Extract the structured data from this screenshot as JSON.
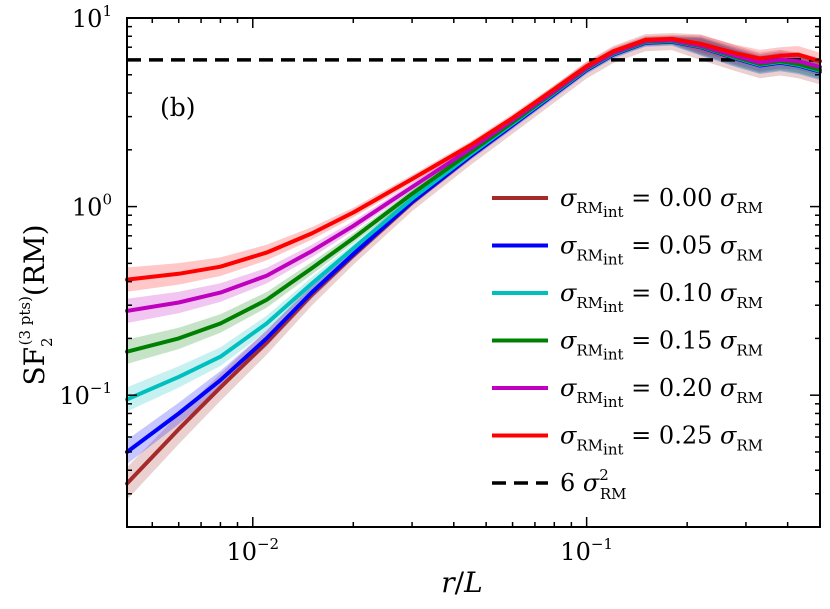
{
  "chart_data": {
    "type": "line",
    "panel_label": "(b)",
    "xscale": "log",
    "yscale": "log",
    "xlim": [
      0.0042,
      0.5
    ],
    "ylim": [
      0.02,
      10
    ],
    "xlabel": {
      "italic_a": "r",
      "slash": "/",
      "italic_b": "L"
    },
    "ylabel": {
      "prefix": "SF",
      "sub": "2",
      "sup": "(3 pts)",
      "suffix": "(RM)"
    },
    "x_ticks": [
      {
        "base": "10",
        "exp": "−2",
        "value": 0.01
      },
      {
        "base": "10",
        "exp": "−1",
        "value": 0.1
      }
    ],
    "y_ticks": [
      {
        "base": "10",
        "exp": "−1",
        "value": 0.1
      },
      {
        "base": "10",
        "exp": "0",
        "value": 1
      },
      {
        "base": "10",
        "exp": "1",
        "value": 10
      }
    ],
    "reference_line": {
      "value": 6,
      "color": "#000000",
      "style": "dashed",
      "legend": {
        "coef": "6 ",
        "sym": "σ",
        "sup": "2",
        "sub": "RM"
      }
    },
    "legend_position": "right",
    "x": [
      0.0042,
      0.006,
      0.008,
      0.011,
      0.015,
      0.02,
      0.03,
      0.045,
      0.06,
      0.08,
      0.1,
      0.12,
      0.15,
      0.18,
      0.22,
      0.28,
      0.33,
      0.38,
      0.43,
      0.5
    ],
    "series": [
      {
        "name": "σRMint = 0.00 σRM",
        "legend": {
          "sym": "σ",
          "sub1": "RM",
          "sub2": "int",
          "eq": " = ",
          "val": "0.00",
          "sym2": "σ",
          "sub3": "RM"
        },
        "color": "#a52a2a",
        "values": [
          0.034,
          0.066,
          0.11,
          0.19,
          0.34,
          0.55,
          1.05,
          1.85,
          2.7,
          3.95,
          5.3,
          6.4,
          7.4,
          7.5,
          7.0,
          6.1,
          5.6,
          5.8,
          5.6,
          5.2
        ]
      },
      {
        "name": "σRMint = 0.05 σRM",
        "legend": {
          "sym": "σ",
          "sub1": "RM",
          "sub2": "int",
          "eq": " = ",
          "val": "0.05",
          "sym2": "σ",
          "sub3": "RM"
        },
        "color": "#0000ff",
        "values": [
          0.05,
          0.08,
          0.12,
          0.2,
          0.35,
          0.56,
          1.06,
          1.86,
          2.7,
          3.95,
          5.3,
          6.4,
          7.4,
          7.5,
          7.0,
          6.1,
          5.6,
          5.8,
          5.6,
          5.2
        ]
      },
      {
        "name": "σRMint = 0.10 σRM",
        "legend": {
          "sym": "σ",
          "sub1": "RM",
          "sub2": "int",
          "eq": " = ",
          "val": "0.10",
          "sym2": "σ",
          "sub3": "RM"
        },
        "color": "#00bfbf",
        "values": [
          0.095,
          0.125,
          0.16,
          0.24,
          0.39,
          0.6,
          1.1,
          1.9,
          2.75,
          4.0,
          5.35,
          6.45,
          7.45,
          7.55,
          7.05,
          6.15,
          5.65,
          5.85,
          5.65,
          5.25
        ]
      },
      {
        "name": "σRMint = 0.15 σRM",
        "legend": {
          "sym": "σ",
          "sub1": "RM",
          "sub2": "int",
          "eq": " = ",
          "val": "0.15",
          "sym2": "σ",
          "sub3": "RM"
        },
        "color": "#008000",
        "values": [
          0.17,
          0.2,
          0.24,
          0.32,
          0.47,
          0.68,
          1.17,
          1.95,
          2.8,
          4.05,
          5.4,
          6.5,
          7.5,
          7.6,
          7.1,
          6.2,
          5.7,
          5.9,
          5.7,
          5.3
        ]
      },
      {
        "name": "σRMint = 0.20 σRM",
        "legend": {
          "sym": "σ",
          "sub1": "RM",
          "sub2": "int",
          "eq": " = ",
          "val": "0.20",
          "sym2": "σ",
          "sub3": "RM"
        },
        "color": "#bf00bf",
        "values": [
          0.28,
          0.31,
          0.35,
          0.43,
          0.58,
          0.79,
          1.27,
          2.03,
          2.88,
          4.1,
          5.45,
          6.55,
          7.55,
          7.65,
          7.15,
          6.3,
          5.8,
          6.0,
          5.9,
          5.5
        ]
      },
      {
        "name": "σRMint = 0.25 σRM",
        "legend": {
          "sym": "σ",
          "sub1": "RM",
          "sub2": "int",
          "eq": " = ",
          "val": "0.25",
          "sym2": "σ",
          "sub3": "RM"
        },
        "color": "#ff0000",
        "values": [
          0.41,
          0.44,
          0.48,
          0.57,
          0.72,
          0.93,
          1.4,
          2.12,
          2.95,
          4.2,
          5.55,
          6.65,
          7.65,
          7.75,
          7.3,
          6.5,
          6.1,
          6.3,
          6.4,
          5.9
        ]
      }
    ]
  }
}
